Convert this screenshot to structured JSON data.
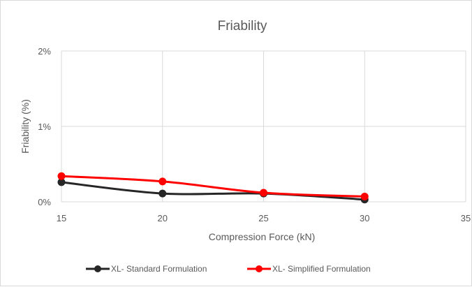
{
  "chart_data": {
    "type": "line",
    "title": "Friability",
    "xlabel": "Compression Force (kN)",
    "ylabel": "Friability (%)",
    "xlim": [
      15,
      35
    ],
    "ylim": [
      0,
      2
    ],
    "x_ticks": [
      15,
      20,
      25,
      30,
      35
    ],
    "x_tick_labels": [
      "15",
      "20",
      "25",
      "30",
      "35"
    ],
    "y_ticks": [
      0,
      1,
      2
    ],
    "y_tick_labels": [
      "0%",
      "1%",
      "2%"
    ],
    "grid": true,
    "smooth": true,
    "legend_position": "bottom",
    "series": [
      {
        "name": "XL- Standard Formulation",
        "color": "#262626",
        "x": [
          15,
          20,
          25,
          30
        ],
        "y": [
          0.26,
          0.11,
          0.11,
          0.03
        ]
      },
      {
        "name": "XL- Simplified Formulation",
        "color": "#ff0000",
        "x": [
          15,
          20,
          25,
          30
        ],
        "y": [
          0.34,
          0.27,
          0.12,
          0.07
        ]
      }
    ]
  }
}
